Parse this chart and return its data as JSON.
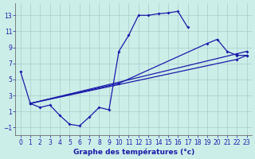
{
  "title": "Graphe des températures (°c)",
  "background_color": "#cceee8",
  "grid_color": "#aacccc",
  "line_color": "#1a1aaa",
  "xlim": [
    -0.5,
    23.5
  ],
  "ylim": [
    -2,
    14.5
  ],
  "xticks": [
    0,
    1,
    2,
    3,
    4,
    5,
    6,
    7,
    8,
    9,
    10,
    11,
    12,
    13,
    14,
    15,
    16,
    17,
    18,
    19,
    20,
    21,
    22,
    23
  ],
  "yticks": [
    -1,
    1,
    3,
    5,
    7,
    9,
    11,
    13
  ],
  "curve1_x": [
    0,
    1,
    2,
    3,
    4,
    5,
    6,
    7,
    8,
    9,
    10,
    11,
    12,
    13,
    14,
    15,
    16,
    17
  ],
  "curve1_y": [
    6,
    2,
    1.5,
    1.8,
    0.5,
    -0.6,
    -0.8,
    0.3,
    1.5,
    1.2,
    8.5,
    10.5,
    13.0,
    13.0,
    13.2,
    13.3,
    13.5,
    11.5
  ],
  "curve2_x": [
    1,
    10,
    19,
    20,
    21,
    22,
    23
  ],
  "curve2_y": [
    2,
    4.5,
    9.5,
    10.0,
    8.5,
    8.0,
    8.0
  ],
  "curve3_x": [
    1,
    22,
    23
  ],
  "curve3_y": [
    2,
    8.2,
    8.5
  ],
  "curve4_x": [
    1,
    22,
    23
  ],
  "curve4_y": [
    2,
    7.5,
    8.0
  ],
  "xlabel_fontsize": 6.5,
  "tick_fontsize": 5.5
}
